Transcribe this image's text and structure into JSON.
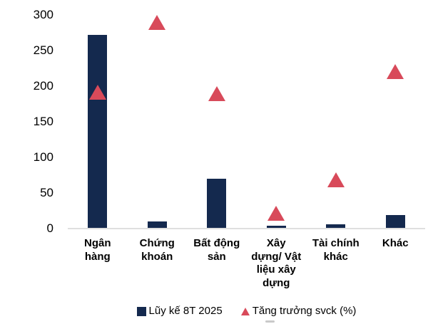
{
  "chart_data": {
    "type": "composite",
    "title": "",
    "xlabel": "",
    "ylabel": "",
    "categories": [
      "Ngân hàng",
      "Chứng khoán",
      "Bất động sản",
      "Xây dựng/ Vật liệu xây dựng",
      "Tài chính khác",
      "Khác"
    ],
    "category_label_lines": [
      [
        "Ngân",
        "hàng"
      ],
      [
        "Chứng",
        "khoán"
      ],
      [
        "Bất động",
        "sản"
      ],
      [
        "Xây",
        "dựng/ Vật",
        "liệu xây",
        "dựng"
      ],
      [
        "Tài chính",
        "khác"
      ],
      [
        "Khác"
      ]
    ],
    "series": [
      {
        "name": "Lũy kế 8T 2025",
        "type": "bar",
        "color": "#14294e",
        "values": [
          272,
          10,
          70,
          4,
          6,
          19
        ]
      },
      {
        "name": "Tăng trưởng svck (%)",
        "type": "scatter-triangle",
        "color": "#d84a5a",
        "values": [
          195,
          293,
          193,
          25,
          72,
          224
        ]
      }
    ],
    "ylim": [
      0,
      300
    ],
    "yticks": [
      0,
      50,
      100,
      150,
      200,
      250,
      300
    ],
    "grid": false,
    "legend_position": "bottom",
    "colors": {
      "bar": "#14294e",
      "marker": "#d84a5a",
      "axis_line": "#dfdfdf",
      "text": "#000000",
      "background": "#ffffff"
    }
  }
}
